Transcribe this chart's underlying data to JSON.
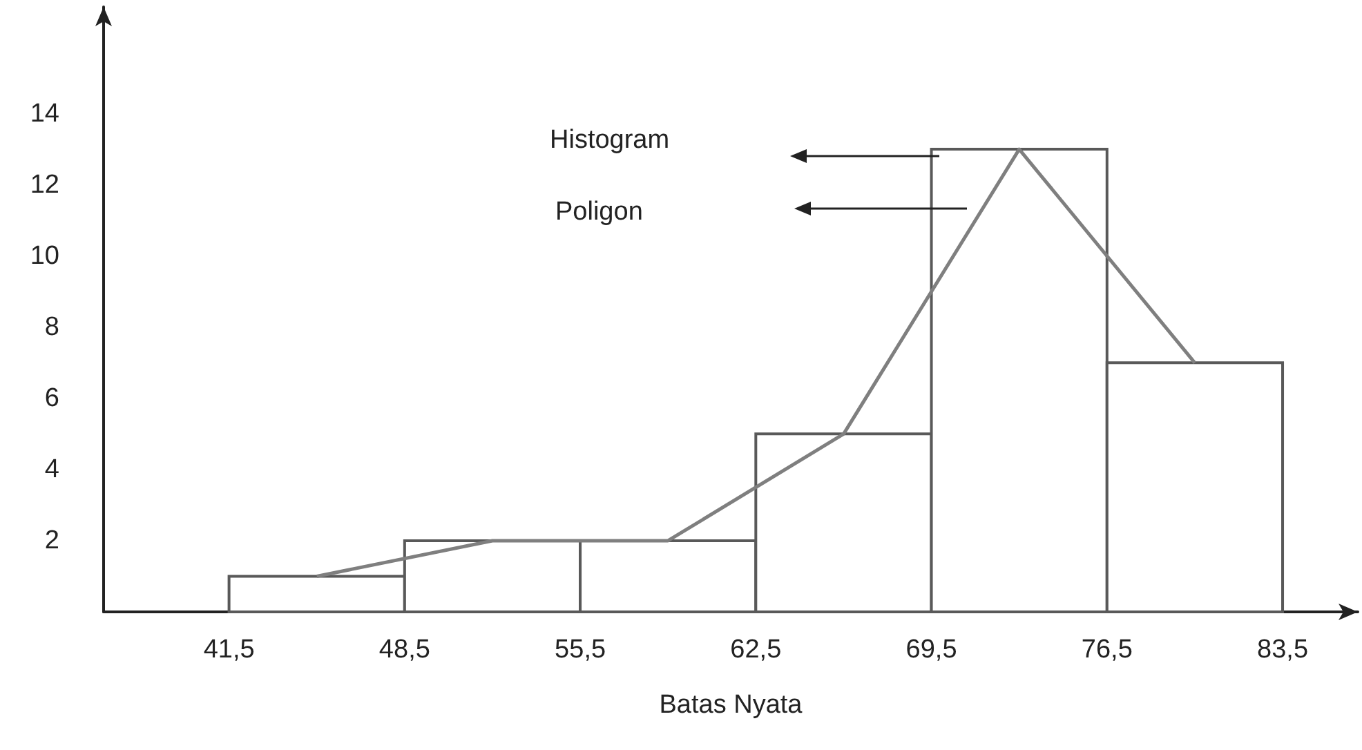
{
  "chart_data": {
    "type": "histogram",
    "xlabel": "Batas Nyata",
    "bins": [
      41.5,
      48.5,
      55.5,
      62.5,
      69.5,
      76.5,
      83.5
    ],
    "series": [
      {
        "color": "#ffffff",
        "values": [
          1,
          2,
          2,
          5,
          13,
          7
        ]
      },
      {
        "type": "line",
        "color": "#7f7f7f",
        "x": [
          45,
          52,
          59,
          66,
          73,
          80
        ],
        "values": [
          1,
          2,
          2,
          5,
          13,
          7
        ]
      }
    ],
    "xlim": [
      36.5,
      86.5
    ],
    "xticks": [
      {
        "value": 41.5,
        "label": "41,5"
      },
      {
        "value": 48.5,
        "label": "48,5"
      },
      {
        "value": 55.5,
        "label": "55,5"
      },
      {
        "value": 62.5,
        "label": "62,5"
      },
      {
        "value": 69.5,
        "label": "69,5"
      },
      {
        "value": 76.5,
        "label": "76,5"
      },
      {
        "value": 83.5,
        "label": "83,5"
      }
    ],
    "ylim": [
      0,
      17
    ],
    "yticks": [
      2,
      4,
      6,
      8,
      10,
      12,
      14
    ],
    "annotations": [
      "Histogram",
      "Poligon"
    ],
    "grid": false,
    "marker": "none",
    "line_style": "solid"
  }
}
